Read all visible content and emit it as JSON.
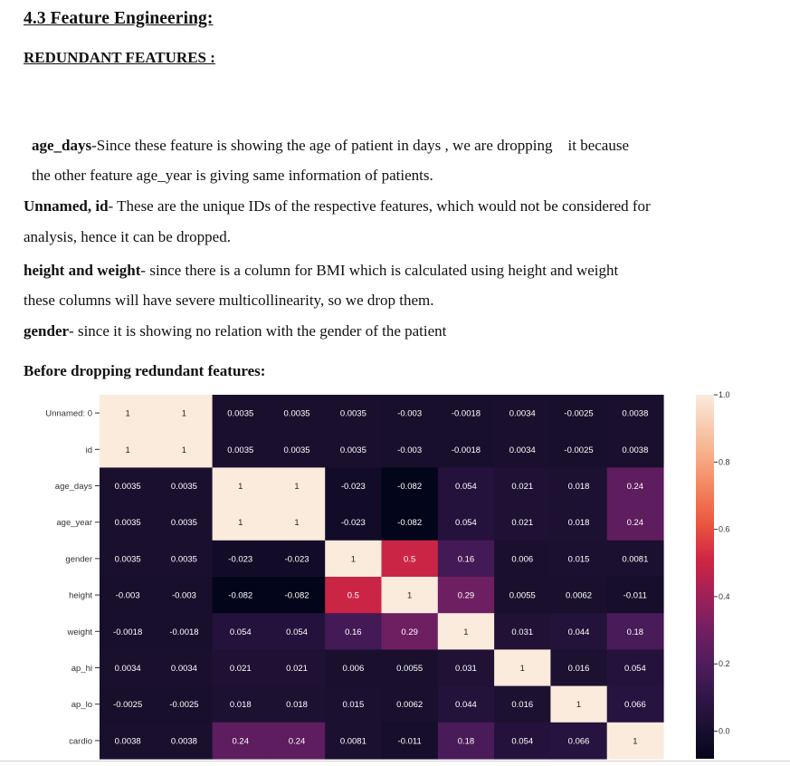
{
  "section_title": "4.3 Feature Engineering:",
  "subsection_title": "REDUNDANT FEATURES :",
  "paragraphs": [
    {
      "bold": "age_days",
      "text": "-Since these feature is showing the age of patient in days , we are dropping    it because"
    },
    {
      "bold": "",
      "text": "the other feature age_year is giving same information of patients."
    },
    {
      "bold": "Unnamed, id",
      "text": "- These are the unique IDs of the respective features, which would not be considered for"
    },
    {
      "bold": "",
      "text": "analysis, hence it can be dropped."
    },
    {
      "bold": "height and weight",
      "text": "- since there is a column for BMI which is calculated using height and weight"
    },
    {
      "bold": "",
      "text": "these columns will have severe multicollinearity, so we drop them."
    },
    {
      "bold": "gender",
      "text": "- since it is showing no relation with the gender of the patient"
    }
  ],
  "figure_caption": "Before dropping redundant features:",
  "chart_data": {
    "type": "heatmap",
    "title": "",
    "labels": [
      "Unnamed: 0",
      "id",
      "age_days",
      "age_year",
      "gender",
      "height",
      "weight",
      "ap_hi",
      "ap_lo",
      "cardio"
    ],
    "matrix": [
      [
        1,
        1,
        0.0035,
        0.0035,
        0.0035,
        -0.003,
        -0.0018,
        0.0034,
        -0.0025,
        0.0038
      ],
      [
        1,
        1,
        0.0035,
        0.0035,
        0.0035,
        -0.003,
        -0.0018,
        0.0034,
        -0.0025,
        0.0038
      ],
      [
        0.0035,
        0.0035,
        1,
        1,
        -0.023,
        -0.082,
        0.054,
        0.021,
        0.018,
        0.24
      ],
      [
        0.0035,
        0.0035,
        1,
        1,
        -0.023,
        -0.082,
        0.054,
        0.021,
        0.018,
        0.24
      ],
      [
        0.0035,
        0.0035,
        -0.023,
        -0.023,
        1,
        0.5,
        0.16,
        0.006,
        0.015,
        0.0081
      ],
      [
        -0.003,
        -0.003,
        -0.082,
        -0.082,
        0.5,
        1,
        0.29,
        0.0055,
        0.0062,
        -0.011
      ],
      [
        -0.0018,
        -0.0018,
        0.054,
        0.054,
        0.16,
        0.29,
        1,
        0.031,
        0.044,
        0.18
      ],
      [
        0.0034,
        0.0034,
        0.021,
        0.021,
        0.006,
        0.0055,
        0.031,
        1,
        0.016,
        0.054
      ],
      [
        -0.0025,
        -0.0025,
        0.018,
        0.018,
        0.015,
        0.0062,
        0.044,
        0.016,
        1,
        0.066
      ],
      [
        0.0038,
        0.0038,
        0.24,
        0.24,
        0.0081,
        -0.011,
        0.18,
        0.054,
        0.066,
        1
      ]
    ],
    "cell_labels": [
      [
        "1",
        "1",
        "0.0035",
        "0.0035",
        "0.0035",
        "-0.003",
        "-0.0018",
        "0.0034",
        "-0.0025",
        "0.0038"
      ],
      [
        "1",
        "1",
        "0.0035",
        "0.0035",
        "0.0035",
        "-0.003",
        "-0.0018",
        "0.0034",
        "-0.0025",
        "0.0038"
      ],
      [
        "0.0035",
        "0.0035",
        "1",
        "1",
        "-0.023",
        "-0.082",
        "0.054",
        "0.021",
        "0.018",
        "0.24"
      ],
      [
        "0.0035",
        "0.0035",
        "1",
        "1",
        "-0.023",
        "-0.082",
        "0.054",
        "0.021",
        "0.018",
        "0.24"
      ],
      [
        "0.0035",
        "0.0035",
        "-0.023",
        "-0.023",
        "1",
        "0.5",
        "0.16",
        "0.006",
        "0.015",
        "0.0081"
      ],
      [
        "-0.003",
        "-0.003",
        "-0.082",
        "-0.082",
        "0.5",
        "1",
        "0.29",
        "0.0055",
        "0.0062",
        "-0.011"
      ],
      [
        "-0.0018",
        "-0.0018",
        "0.054",
        "0.054",
        "0.16",
        "0.29",
        "1",
        "0.031",
        "0.044",
        "0.18"
      ],
      [
        "0.0034",
        "0.0034",
        "0.021",
        "0.021",
        "0.006",
        "0.0055",
        "0.031",
        "1",
        "0.016",
        "0.054"
      ],
      [
        "-0.0025",
        "-0.0025",
        "0.018",
        "0.018",
        "0.015",
        "0.0062",
        "0.044",
        "0.016",
        "1",
        "0.066"
      ],
      [
        "0.0038",
        "0.0038",
        "0.24",
        "0.24",
        "0.0081",
        "-0.011",
        "0.18",
        "0.054",
        "0.066",
        "1"
      ]
    ],
    "colorbar": {
      "ticks": [
        "1.0",
        "0.8",
        "0.6",
        "0.4",
        "0.2",
        "0.0"
      ],
      "tick_values": [
        1.0,
        0.8,
        0.6,
        0.4,
        0.2,
        0.0
      ],
      "vmin": -0.082,
      "vmax": 1.0,
      "colormap": "rocket"
    },
    "xlabel": "",
    "ylabel": "",
    "x_tick_labels_visible": false
  }
}
